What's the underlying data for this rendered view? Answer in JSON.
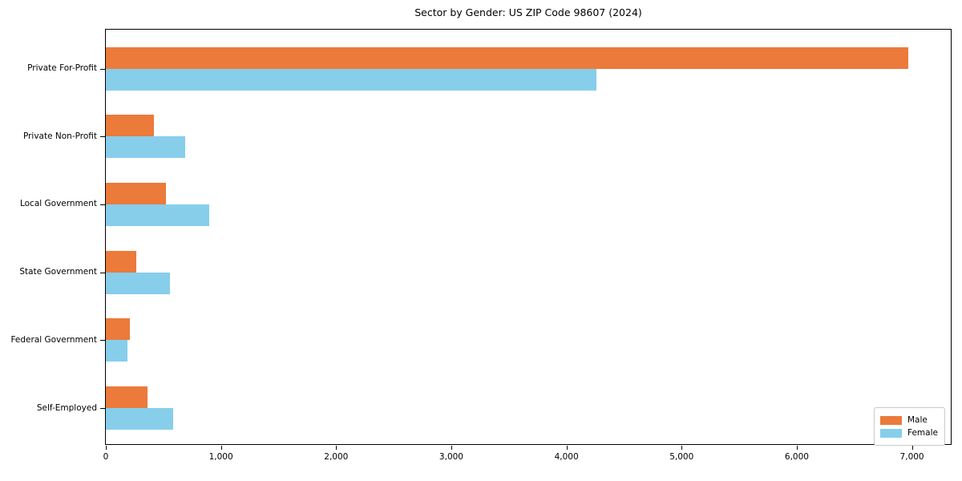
{
  "title": "Sector by Gender: US ZIP Code 98607 (2024)",
  "chart_data": {
    "type": "bar",
    "orientation": "horizontal",
    "title": "Sector by Gender: US ZIP Code 98607 (2024)",
    "categories": [
      "Private For-Profit",
      "Private Non-Profit",
      "Local Government",
      "State Government",
      "Federal Government",
      "Self-Employed"
    ],
    "series": [
      {
        "name": "Male",
        "color": "#eb7a3b",
        "values": [
          6970,
          420,
          525,
          265,
          210,
          365
        ]
      },
      {
        "name": "Female",
        "color": "#87ceeb",
        "values": [
          4260,
          690,
          900,
          555,
          185,
          585
        ]
      }
    ],
    "xlabel": "",
    "ylabel": "",
    "xlim": [
      0,
      7330
    ],
    "xticks": [
      {
        "value": 0,
        "label": "0"
      },
      {
        "value": 1000,
        "label": "1,000"
      },
      {
        "value": 2000,
        "label": "2,000"
      },
      {
        "value": 3000,
        "label": "3,000"
      },
      {
        "value": 4000,
        "label": "4,000"
      },
      {
        "value": 5000,
        "label": "5,000"
      },
      {
        "value": 6000,
        "label": "6,000"
      },
      {
        "value": 7000,
        "label": "7,000"
      }
    ],
    "legend": {
      "position": "lower-right",
      "items": [
        "Male",
        "Female"
      ]
    },
    "grid": false,
    "background_color": "#ffffff",
    "axis_color": "#000000"
  }
}
